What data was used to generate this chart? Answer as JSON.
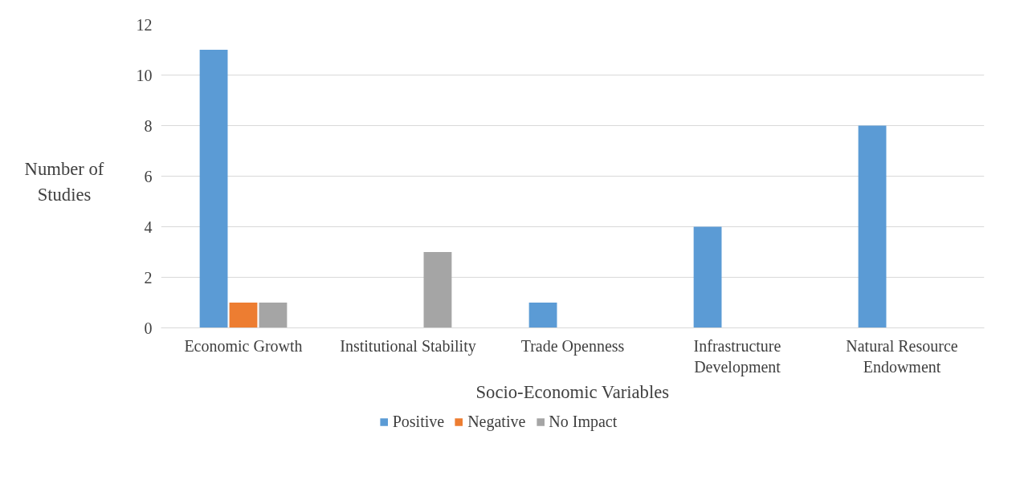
{
  "chart_data": {
    "type": "bar",
    "xlabel": "Socio-Economic Variables",
    "ylabel": "Number of\nStudies",
    "categories": [
      "Economic Growth",
      "Institutional Stability",
      "Trade Openness",
      "Infrastructure\nDevelopment",
      "Natural Resource\nEndowment"
    ],
    "series": [
      {
        "name": "Positive",
        "color": "#5b9bd5",
        "values": [
          11,
          0,
          1,
          4,
          8
        ]
      },
      {
        "name": "Negative",
        "color": "#ed7d31",
        "values": [
          1,
          0,
          0,
          0,
          0
        ]
      },
      {
        "name": "No Impact",
        "color": "#a5a5a5",
        "values": [
          1,
          3,
          0,
          0,
          0
        ]
      }
    ],
    "ylim": [
      0,
      12
    ],
    "yticks": [
      0,
      2,
      4,
      6,
      8,
      10,
      12
    ],
    "grid": "y",
    "legend": "bottom"
  }
}
